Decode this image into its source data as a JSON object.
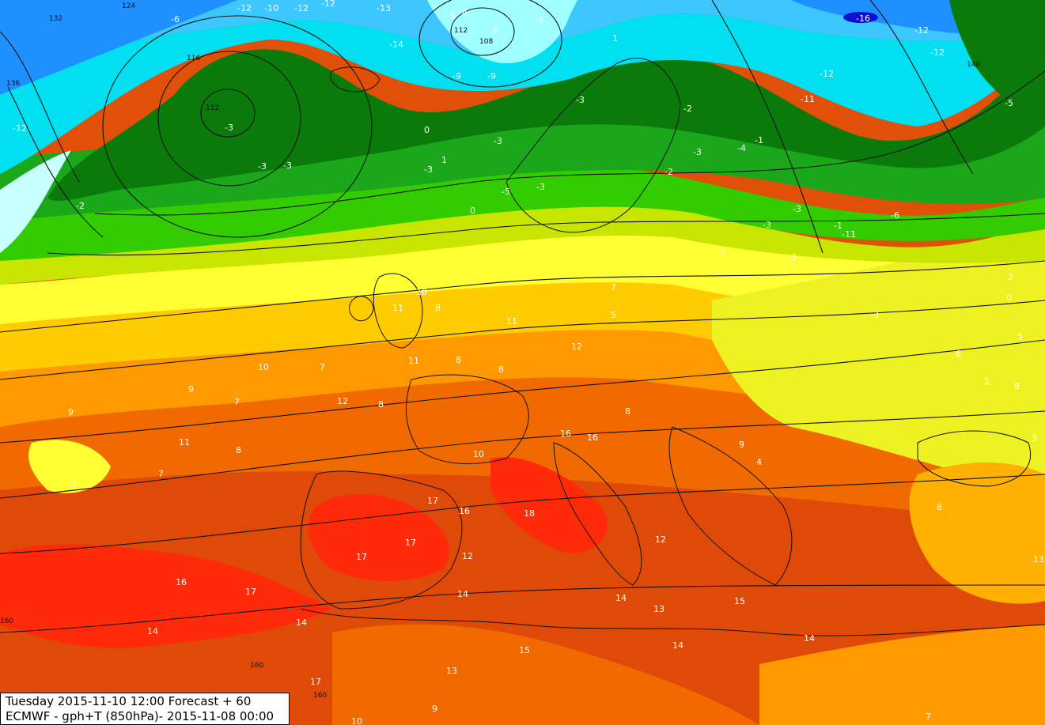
{
  "info": {
    "line1": "Tuesday 2015-11-10 12:00 Forecast + 60",
    "line2": "ECMWF - gph+T (850hPa)- 2015-11-08 00:00"
  },
  "palette": {
    "deep_blue": "#1010d0",
    "blue": "#1e90ff",
    "light_blue": "#3cc8ff",
    "cyan": "#00ffff",
    "pale_cyan": "#c8ffff",
    "dark_green": "#0a7a0a",
    "green": "#1aa81a",
    "light_green": "#33cc00",
    "lime": "#99e600",
    "yellow": "#ffff33",
    "gold": "#ffcc00",
    "orange": "#ff9900",
    "dark_orange": "#f27300",
    "red_orange": "#e04a08",
    "red": "#ff2a0a"
  },
  "temperature_labels": [
    "-12",
    "-10",
    "-12",
    "-12",
    "-13",
    "-6",
    "-4",
    "-5",
    "-9",
    "-9",
    "-14",
    "-9",
    "-9",
    "-3",
    "-3",
    "-3",
    "-2",
    "-12",
    "0",
    "1",
    "-3",
    "-3",
    "-5",
    "0",
    "-3",
    "-3",
    "1",
    "-2",
    "-4",
    "-1",
    "-3",
    "-3",
    "-3",
    "-2",
    "-1",
    "-3",
    "-1",
    "-6",
    "-12",
    "-11",
    "-12",
    "-12",
    "-11",
    "-5",
    "-16",
    "-3",
    "2",
    "0",
    "5",
    "6",
    "1",
    "8",
    "3",
    "11",
    "10",
    "8",
    "11",
    "8",
    "8",
    "10",
    "7",
    "9",
    "7",
    "12",
    "8",
    "9",
    "11",
    "8",
    "7",
    "3",
    "11",
    "12",
    "7",
    "5",
    "8",
    "16",
    "16",
    "10",
    "9",
    "4",
    "17",
    "16",
    "18",
    "17",
    "12",
    "17",
    "14",
    "16",
    "17",
    "14",
    "14",
    "14",
    "13",
    "12",
    "15",
    "14",
    "14",
    "8",
    "13",
    "17",
    "13",
    "15",
    "9",
    "10",
    "7"
  ],
  "gph_labels": [
    "132",
    "124",
    "136",
    "112",
    "112",
    "108",
    "116",
    "140",
    "160",
    "160",
    "160"
  ]
}
